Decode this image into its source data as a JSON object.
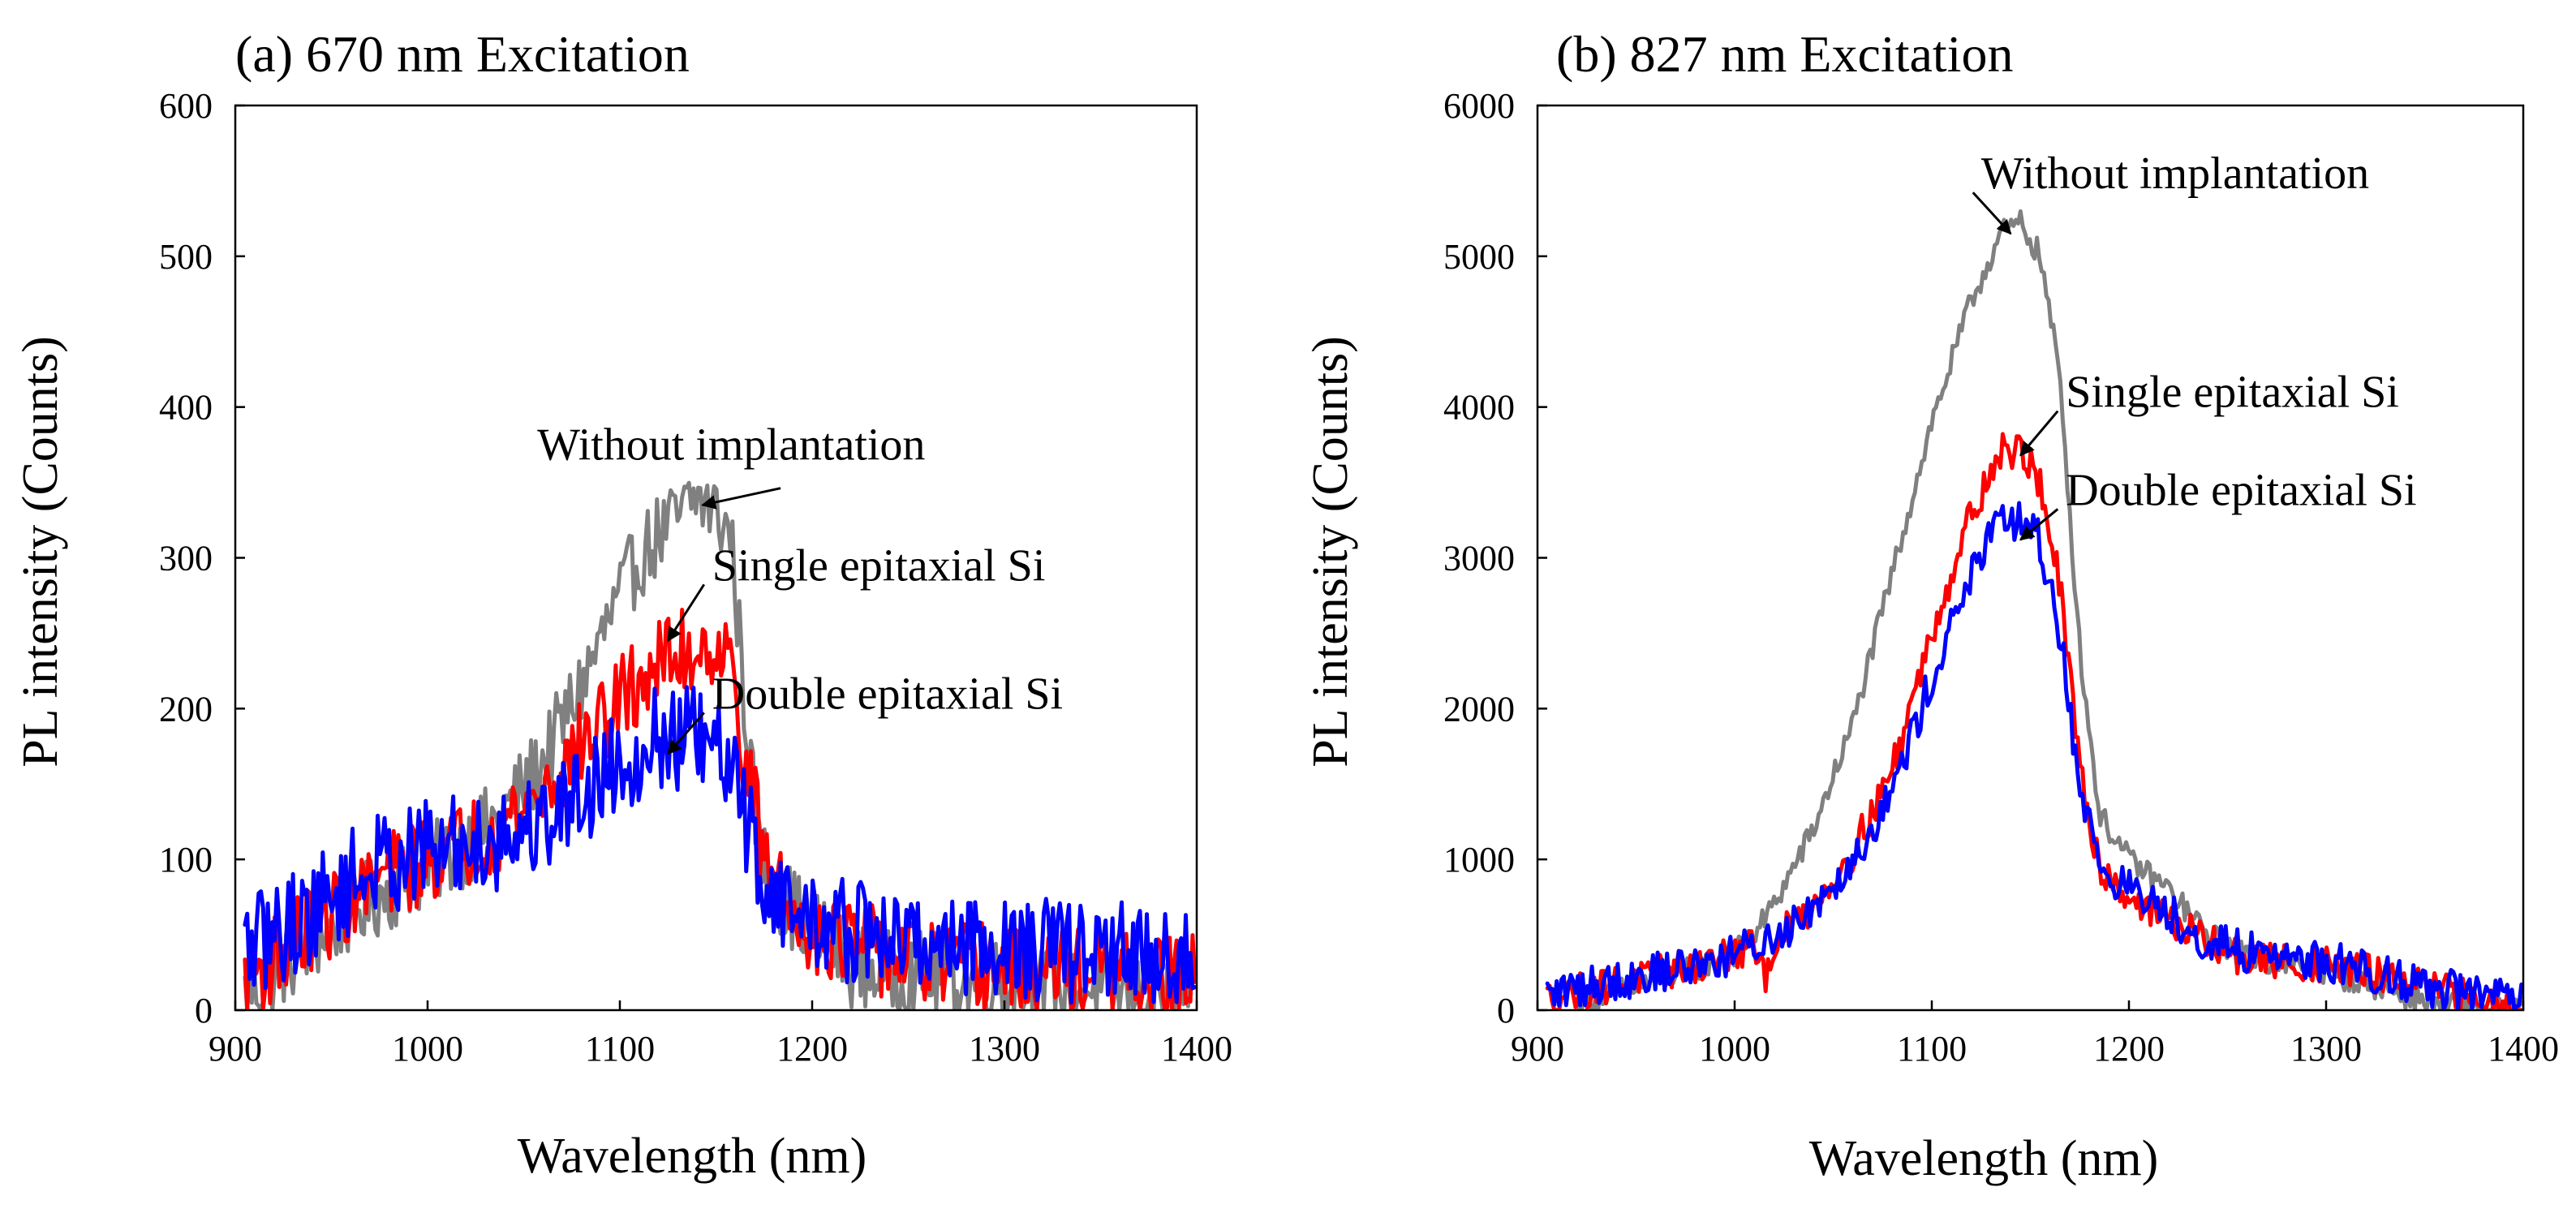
{
  "chart_data": [
    {
      "type": "line",
      "title": "(a) 670 nm Excitation",
      "xlabel": "Wavelength (nm)",
      "ylabel": "PL intensity (Counts)",
      "xlim": [
        900,
        1400
      ],
      "ylim": [
        0,
        600
      ],
      "xticks": [
        900,
        1000,
        1100,
        1200,
        1300,
        1400
      ],
      "yticks": [
        0,
        100,
        200,
        300,
        400,
        500,
        600
      ],
      "grid": false,
      "series": [
        {
          "name": "Without implantation",
          "color": "#808080",
          "x": [
            905,
            920,
            940,
            960,
            980,
            1000,
            1020,
            1040,
            1060,
            1080,
            1095,
            1110,
            1120,
            1130,
            1140,
            1150,
            1158,
            1165,
            1172,
            1180,
            1200,
            1220,
            1240,
            1260,
            1280,
            1300,
            1320,
            1340,
            1360,
            1380,
            1400
          ],
          "y": [
            10,
            25,
            45,
            65,
            80,
            95,
            110,
            130,
            165,
            215,
            260,
            300,
            315,
            325,
            340,
            330,
            315,
            200,
            110,
            80,
            55,
            30,
            25,
            25,
            20,
            20,
            15,
            15,
            10,
            10,
            10
          ],
          "noise": 28
        },
        {
          "name": "Single epitaxial Si",
          "color": "#ff0000",
          "x": [
            905,
            920,
            940,
            960,
            980,
            1000,
            1020,
            1040,
            1060,
            1080,
            1100,
            1120,
            1130,
            1140,
            1150,
            1158,
            1165,
            1175,
            1190,
            1210,
            1230,
            1250,
            1270,
            1290,
            1310,
            1330,
            1350,
            1370,
            1400
          ],
          "y": [
            20,
            35,
            55,
            75,
            90,
            100,
            110,
            125,
            145,
            175,
            205,
            230,
            235,
            240,
            245,
            225,
            170,
            100,
            60,
            50,
            40,
            35,
            30,
            30,
            25,
            25,
            25,
            20,
            20
          ],
          "noise": 30
        },
        {
          "name": "Double epitaxial Si",
          "color": "#0000ff",
          "x": [
            905,
            920,
            940,
            960,
            980,
            1000,
            1020,
            1040,
            1060,
            1080,
            1100,
            1120,
            1140,
            1155,
            1165,
            1175,
            1190,
            1210,
            1230,
            1250,
            1270,
            1290,
            1310,
            1330,
            1350,
            1370,
            1400
          ],
          "y": [
            40,
            50,
            65,
            85,
            100,
            105,
            110,
            115,
            125,
            145,
            165,
            180,
            180,
            165,
            130,
            85,
            65,
            55,
            50,
            45,
            45,
            45,
            40,
            40,
            40,
            35,
            35
          ],
          "noise": 35
        }
      ],
      "annotations": [
        {
          "text": "Without implantation",
          "x": 1057,
          "y": 365,
          "arrow_to": [
            1143,
            335
          ]
        },
        {
          "text": "Single epitaxial Si",
          "x": 1148,
          "y": 285,
          "arrow_to": [
            1125,
            245
          ]
        },
        {
          "text": "Double epitaxial Si",
          "x": 1148,
          "y": 200,
          "arrow_to": [
            1125,
            170
          ]
        }
      ]
    },
    {
      "type": "line",
      "title": "(b) 827 nm Excitation",
      "xlabel": "Wavelength (nm)",
      "ylabel": "PL intensity (Counts)",
      "xlim": [
        900,
        1400
      ],
      "ylim": [
        0,
        6000
      ],
      "xticks": [
        900,
        1000,
        1100,
        1200,
        1300,
        1400
      ],
      "yticks": [
        0,
        1000,
        2000,
        3000,
        4000,
        5000,
        6000
      ],
      "grid": false,
      "series": [
        {
          "name": "Without implantation",
          "color": "#808080",
          "x": [
            920,
            940,
            960,
            980,
            1000,
            1010,
            1020,
            1040,
            1060,
            1080,
            1100,
            1120,
            1135,
            1145,
            1155,
            1165,
            1175,
            1185,
            1200,
            1220,
            1240,
            1260,
            1280,
            1300,
            1320,
            1340,
            1360,
            1380,
            1400
          ],
          "y": [
            30,
            120,
            200,
            280,
            380,
            500,
            700,
            1200,
            1900,
            2900,
            3900,
            4700,
            5150,
            5220,
            5000,
            4200,
            2400,
            1300,
            1000,
            800,
            500,
            350,
            300,
            250,
            180,
            100,
            30,
            10,
            0
          ],
          "noise": 25
        },
        {
          "name": "Single epitaxial Si",
          "color": "#ff0000",
          "x": [
            905,
            920,
            940,
            960,
            980,
            1000,
            1010,
            1015,
            1020,
            1040,
            1060,
            1080,
            1100,
            1120,
            1135,
            1145,
            1155,
            1165,
            1175,
            1185,
            1200,
            1220,
            1240,
            1260,
            1280,
            1300,
            1320,
            1340,
            1360,
            1380,
            1400
          ],
          "y": [
            80,
            120,
            180,
            240,
            300,
            380,
            420,
            200,
            450,
            700,
            1050,
            1600,
            2500,
            3300,
            3700,
            3720,
            3500,
            2800,
            1600,
            950,
            750,
            600,
            450,
            330,
            320,
            300,
            250,
            180,
            120,
            60,
            20
          ],
          "noise": 35
        },
        {
          "name": "Double epitaxial Si",
          "color": "#0000ff",
          "x": [
            905,
            920,
            940,
            960,
            980,
            1000,
            1020,
            1040,
            1060,
            1080,
            1100,
            1120,
            1135,
            1145,
            1155,
            1165,
            1175,
            1185,
            1200,
            1220,
            1240,
            1260,
            1270,
            1280,
            1300,
            1320,
            1340,
            1360,
            1380,
            1400
          ],
          "y": [
            100,
            150,
            200,
            250,
            300,
            370,
            480,
            700,
            1000,
            1450,
            2200,
            2900,
            3230,
            3250,
            3100,
            2500,
            1500,
            950,
            800,
            650,
            450,
            380,
            390,
            360,
            320,
            270,
            200,
            140,
            90,
            50
          ],
          "noise": 40
        }
      ],
      "annotations": [
        {
          "text": "Without implantation",
          "x": 1125,
          "y": 5450,
          "arrow_to": [
            1140,
            5150
          ]
        },
        {
          "text": "Single epitaxial Si",
          "x": 1168,
          "y": 4000,
          "arrow_to": [
            1145,
            3680
          ]
        },
        {
          "text": "Double epitaxial Si",
          "x": 1168,
          "y": 3350,
          "arrow_to": [
            1145,
            3120
          ]
        }
      ]
    }
  ]
}
